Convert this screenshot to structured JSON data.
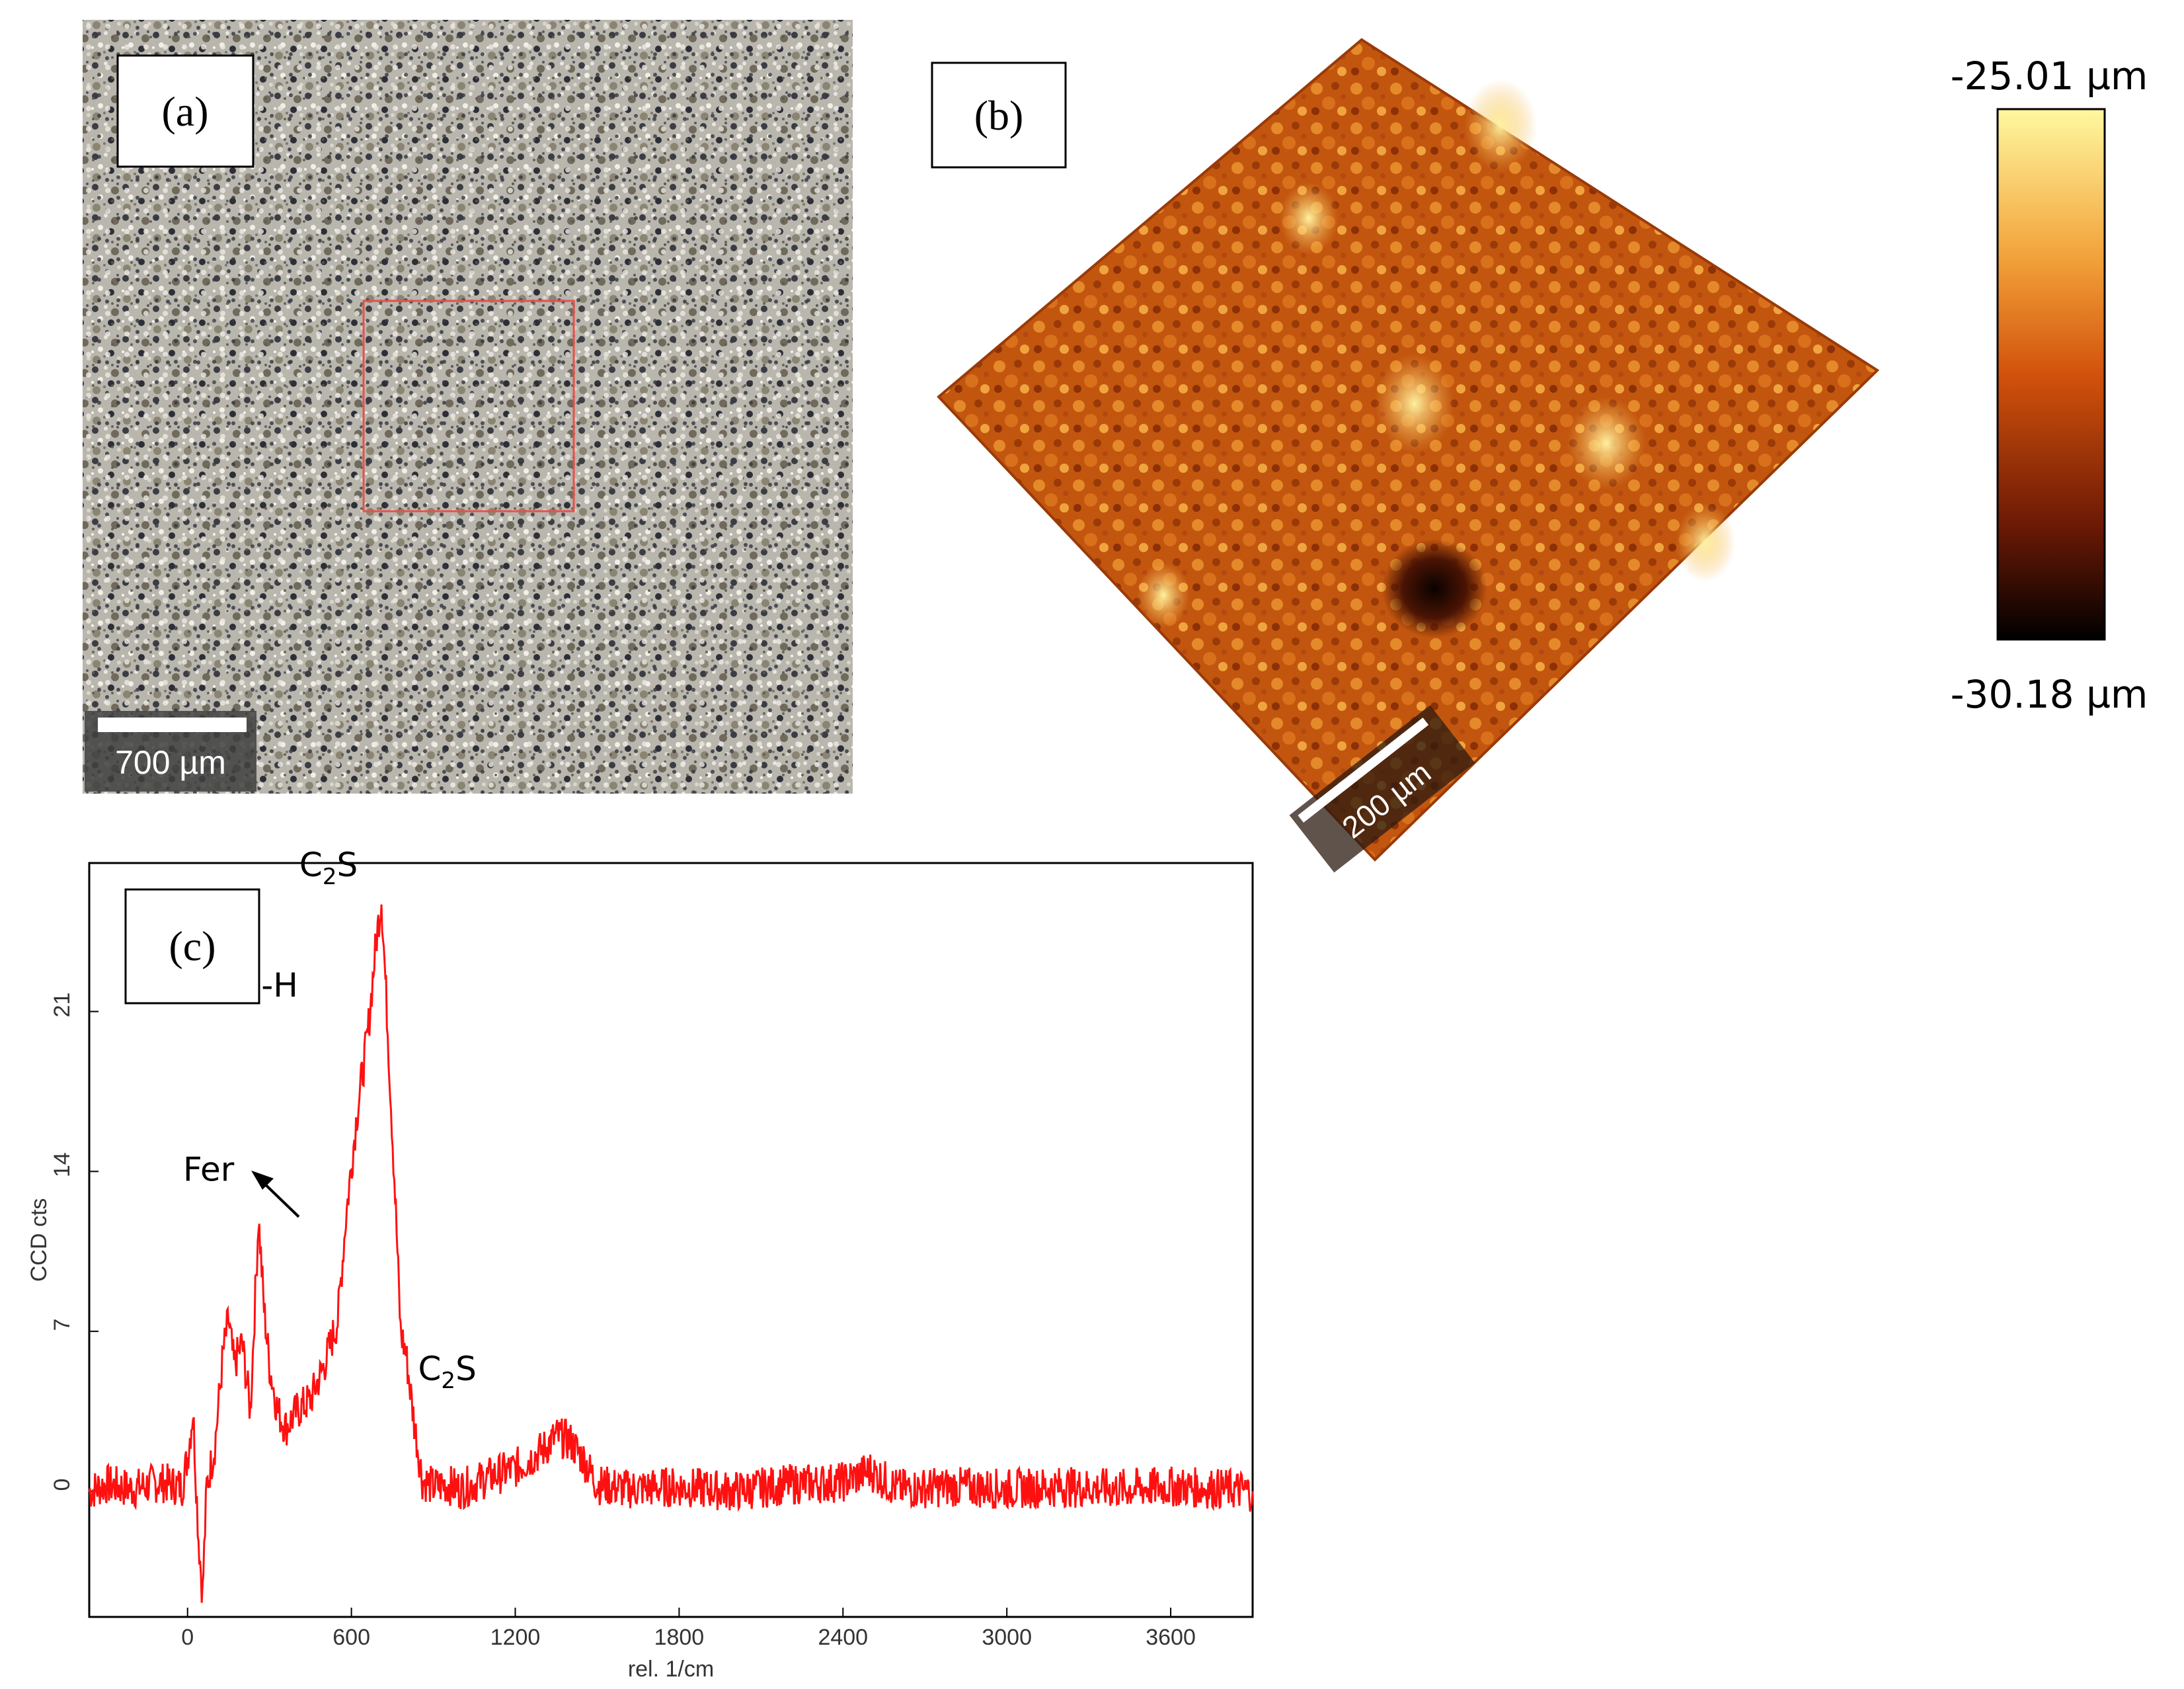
{
  "panels": {
    "a": {
      "label": "(a)",
      "scale_bar": "700 µm"
    },
    "b": {
      "label": "(b)",
      "scale_bar": "200 µm"
    },
    "c": {
      "label": "(c)"
    }
  },
  "colorbar": {
    "max_label": "-25.01 µm",
    "min_label": "-30.18 µm",
    "stops": [
      "#fff8a0",
      "#f2a23a",
      "#d2520c",
      "#6e1a05",
      "#000000"
    ]
  },
  "colors": {
    "spectrum": "#ff1010",
    "roi_box": "#e8504a"
  },
  "chart_data": {
    "type": "line",
    "xlabel": "rel. 1/cm",
    "ylabel": "CCD cts",
    "xlim": [
      -360,
      3900
    ],
    "ylim": [
      -5.5,
      27.5
    ],
    "xticks": [
      0,
      600,
      1200,
      1800,
      2400,
      3000,
      3600
    ],
    "xtick_labels": [
      "0",
      "600",
      "1200",
      "1800",
      "2400",
      "3000",
      "3600"
    ],
    "yticks": [
      0,
      7,
      14,
      21
    ],
    "ytick_labels": [
      "0",
      "7",
      "14",
      "21"
    ],
    "series": [
      {
        "x": [
          -360,
          -300,
          -200,
          -100,
          -20,
          0,
          20,
          40,
          55,
          70,
          100,
          130,
          150,
          170,
          200,
          230,
          260,
          280,
          300,
          330,
          360,
          400,
          450,
          500,
          550,
          580,
          620,
          660,
          690,
          710,
          730,
          760,
          780,
          800,
          830,
          860,
          900,
          950,
          1000,
          1100,
          1200,
          1300,
          1350,
          1400,
          1450,
          1500,
          1600,
          1800,
          2000,
          2200,
          2400,
          2500,
          2600,
          2800,
          3000,
          3200,
          3400,
          3600,
          3800,
          3900
        ],
        "y": [
          0,
          0.3,
          0.1,
          0.4,
          0.2,
          1.5,
          3.5,
          -2.0,
          -4.5,
          0.2,
          2.0,
          6.0,
          7.5,
          5.5,
          6.5,
          3.5,
          12.0,
          8.0,
          5.5,
          3.5,
          2.8,
          3.5,
          4.0,
          5.5,
          7.5,
          12.0,
          16.5,
          20.0,
          24.0,
          26.0,
          21.0,
          13.0,
          7.0,
          6.0,
          3.0,
          0.5,
          0.2,
          0.3,
          0.1,
          0.6,
          1.0,
          1.8,
          2.4,
          2.2,
          1.4,
          0.3,
          0.1,
          0.2,
          0.0,
          0.3,
          0.4,
          0.9,
          0.1,
          0.2,
          0.1,
          0.2,
          0.1,
          0.2,
          0.1,
          0.0
        ]
      }
    ],
    "annotations": [
      {
        "text": "Fer",
        "x": 250,
        "y": 12.0
      },
      {
        "text": "C-S-H",
        "x": 670,
        "y": 20.5
      },
      {
        "text": "C",
        "sub": "2",
        "tail": "S",
        "x": 700,
        "y": 26.0
      },
      {
        "text": "C",
        "sub": "2",
        "tail": "S",
        "x": 820,
        "y": 4.0
      }
    ]
  }
}
